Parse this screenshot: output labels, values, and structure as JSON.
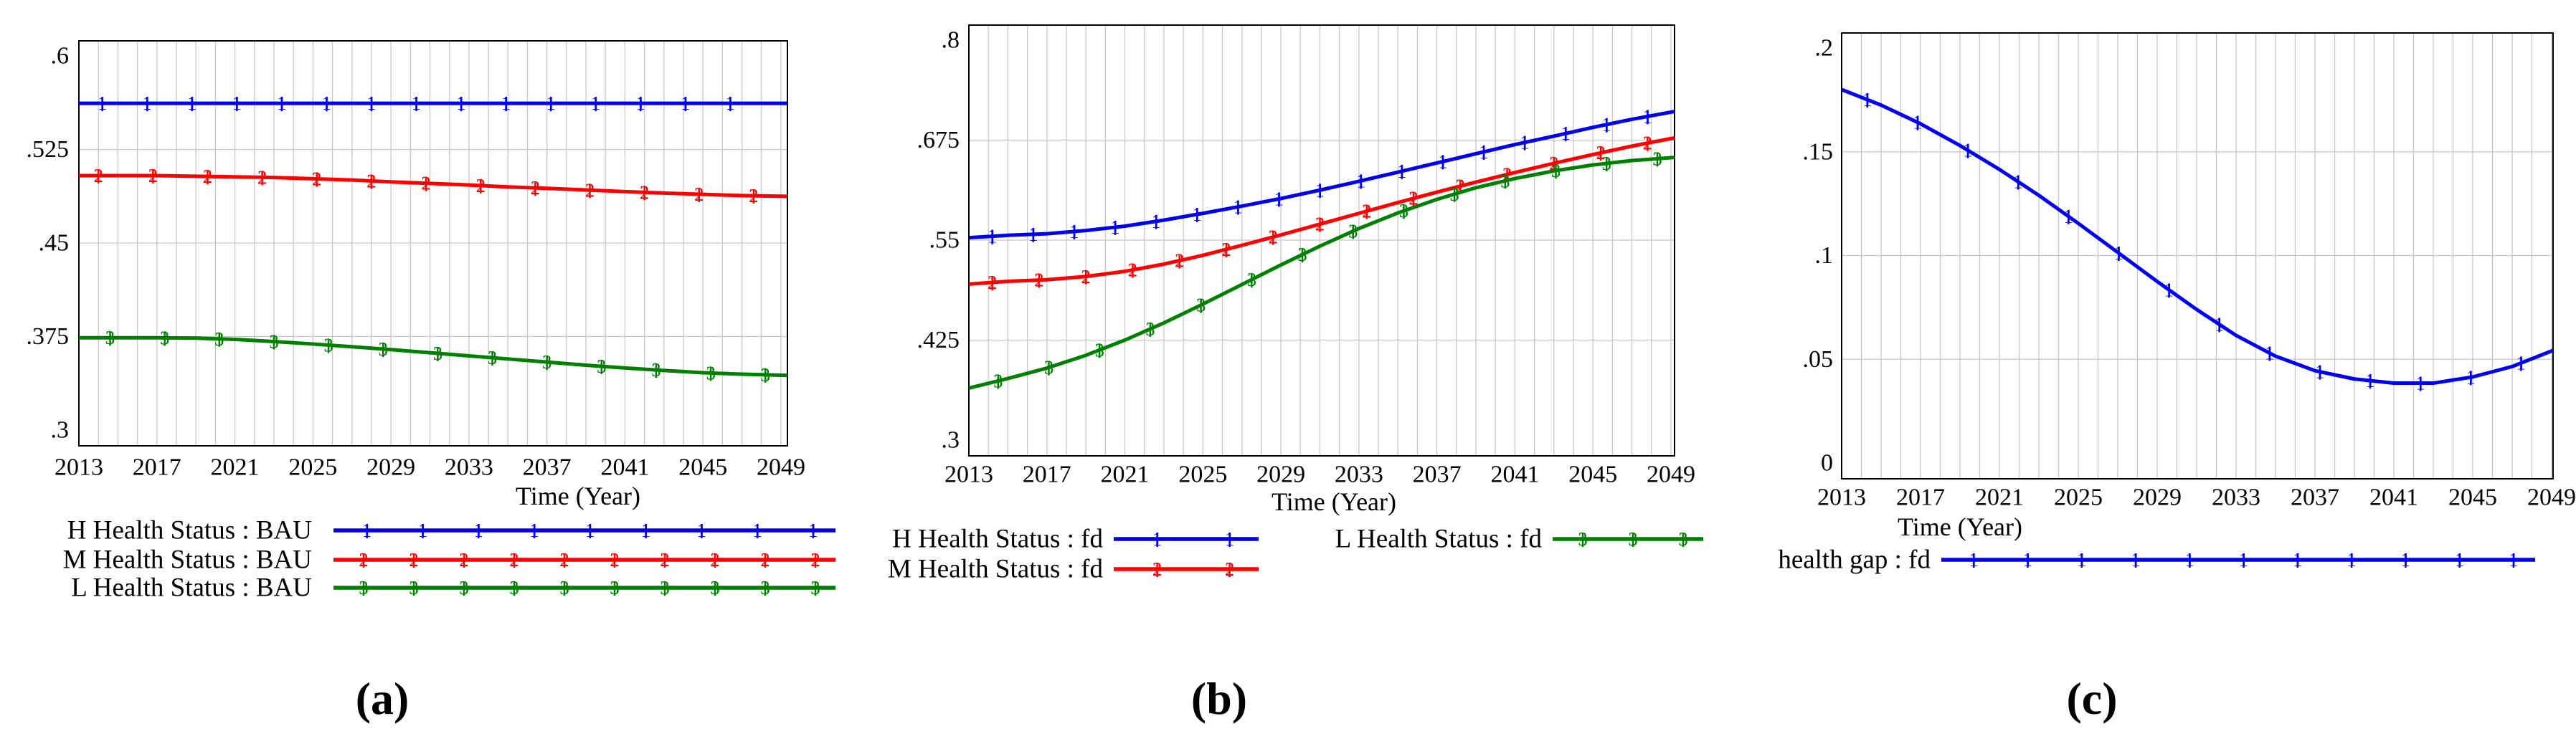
{
  "figure": {
    "background": "#ffffff",
    "grid_color": "#c8c8c8",
    "border_color": "#000000"
  },
  "chart_data": [
    {
      "id": "a",
      "type": "line",
      "caption": "(a)",
      "xlabel": "Time (Year)",
      "xlim": [
        2013,
        2049
      ],
      "ylim": [
        0.3,
        0.6
      ],
      "x_tick_labels": [
        "2013",
        "2017",
        "2021",
        "2025",
        "2029",
        "2033",
        "2037",
        "2041",
        "2045",
        "2049"
      ],
      "x_tick_values": [
        2013,
        2017,
        2021,
        2025,
        2029,
        2033,
        2037,
        2041,
        2045,
        2049
      ],
      "y_ticks": [
        {
          "label": ".6",
          "value": 0.6
        },
        {
          "label": ".525",
          "value": 0.525
        },
        {
          "label": ".45",
          "value": 0.45
        },
        {
          "label": ".375",
          "value": 0.375
        },
        {
          "label": ".3",
          "value": 0.3
        }
      ],
      "x": [
        2013,
        2015,
        2017,
        2019,
        2021,
        2023,
        2025,
        2027,
        2029,
        2031,
        2033,
        2035,
        2037,
        2039,
        2041,
        2043,
        2045,
        2047,
        2049
      ],
      "series": [
        {
          "name": "H Health Status : BAU",
          "marker_digit": "1",
          "color": "#0000ee",
          "values": [
            0.562,
            0.562,
            0.562,
            0.562,
            0.562,
            0.562,
            0.562,
            0.562,
            0.562,
            0.562,
            0.562,
            0.562,
            0.562,
            0.562,
            0.562,
            0.562,
            0.562,
            0.562,
            0.562
          ]
        },
        {
          "name": "M Health Status : BAU",
          "marker_digit": "2",
          "color": "#ff0000",
          "values": [
            0.504,
            0.504,
            0.504,
            0.5035,
            0.503,
            0.5025,
            0.5015,
            0.5005,
            0.499,
            0.4978,
            0.4965,
            0.495,
            0.4938,
            0.4925,
            0.4912,
            0.49,
            0.489,
            0.488,
            0.4875
          ]
        },
        {
          "name": "L Health Status : BAU",
          "marker_digit": "3",
          "color": "#008000",
          "values": [
            0.374,
            0.374,
            0.374,
            0.3737,
            0.3727,
            0.371,
            0.369,
            0.3668,
            0.3645,
            0.362,
            0.3595,
            0.357,
            0.3545,
            0.352,
            0.3498,
            0.3478,
            0.346,
            0.3448,
            0.344
          ]
        }
      ]
    },
    {
      "id": "b",
      "type": "line",
      "caption": "(b)",
      "xlabel": "Time (Year)",
      "xlim": [
        2013,
        2049
      ],
      "ylim": [
        0.3,
        0.8
      ],
      "x_tick_labels": [
        "2013",
        "2017",
        "2021",
        "2025",
        "2029",
        "2033",
        "2037",
        "2041",
        "2045",
        "2049"
      ],
      "x_tick_values": [
        2013,
        2017,
        2021,
        2025,
        2029,
        2033,
        2037,
        2041,
        2045,
        2049
      ],
      "y_ticks": [
        {
          "label": ".8",
          "value": 0.8
        },
        {
          "label": ".675",
          "value": 0.675
        },
        {
          "label": ".55",
          "value": 0.55
        },
        {
          "label": ".425",
          "value": 0.425
        },
        {
          "label": ".3",
          "value": 0.3
        }
      ],
      "x": [
        2013,
        2015,
        2017,
        2019,
        2021,
        2023,
        2025,
        2027,
        2029,
        2031,
        2033,
        2035,
        2037,
        2039,
        2041,
        2043,
        2045,
        2047,
        2049
      ],
      "series": [
        {
          "name": "H Health Status : fd",
          "marker_digit": "1",
          "color": "#0000ee",
          "values": [
            0.553,
            0.556,
            0.558,
            0.562,
            0.5675,
            0.575,
            0.5835,
            0.5925,
            0.602,
            0.6125,
            0.6235,
            0.635,
            0.6465,
            0.658,
            0.6695,
            0.68,
            0.691,
            0.701,
            0.71
          ]
        },
        {
          "name": "M Health Status : fd",
          "marker_digit": "2",
          "color": "#ff0000",
          "values": [
            0.495,
            0.4985,
            0.5005,
            0.5045,
            0.511,
            0.52,
            0.531,
            0.5435,
            0.5565,
            0.57,
            0.5835,
            0.597,
            0.61,
            0.6225,
            0.6345,
            0.646,
            0.657,
            0.6675,
            0.677
          ]
        },
        {
          "name": "L Health Status : fd",
          "marker_digit": "3",
          "color": "#008000",
          "values": [
            0.365,
            0.377,
            0.39,
            0.406,
            0.425,
            0.4465,
            0.47,
            0.4945,
            0.519,
            0.5425,
            0.5645,
            0.584,
            0.601,
            0.6155,
            0.627,
            0.6365,
            0.644,
            0.6495,
            0.653
          ]
        }
      ]
    },
    {
      "id": "c",
      "type": "line",
      "caption": "(c)",
      "xlabel": "Time (Year)",
      "xlim": [
        2013,
        2049
      ],
      "ylim": [
        0,
        0.2
      ],
      "x_tick_labels": [
        "2013",
        "2017",
        "2021",
        "2025",
        "2029",
        "2033",
        "2037",
        "2041",
        "2045",
        "2049"
      ],
      "x_tick_values": [
        2013,
        2017,
        2021,
        2025,
        2029,
        2033,
        2037,
        2041,
        2045,
        2049
      ],
      "y_ticks": [
        {
          "label": ".2",
          "value": 0.2
        },
        {
          "label": ".15",
          "value": 0.15
        },
        {
          "label": ".1",
          "value": 0.1
        },
        {
          "label": ".05",
          "value": 0.05
        },
        {
          "label": "0",
          "value": 0
        }
      ],
      "x": [
        2013,
        2015,
        2017,
        2019,
        2021,
        2023,
        2025,
        2027,
        2029,
        2031,
        2033,
        2035,
        2037,
        2039,
        2041,
        2043,
        2045,
        2047,
        2049
      ],
      "series": [
        {
          "name": "health gap : fd",
          "marker_digit": "1",
          "color": "#0000ee",
          "values": [
            0.18,
            0.1725,
            0.1635,
            0.153,
            0.1415,
            0.129,
            0.1155,
            0.1015,
            0.0875,
            0.074,
            0.0615,
            0.0515,
            0.0445,
            0.0405,
            0.0385,
            0.0385,
            0.0415,
            0.0465,
            0.054
          ]
        }
      ]
    }
  ]
}
